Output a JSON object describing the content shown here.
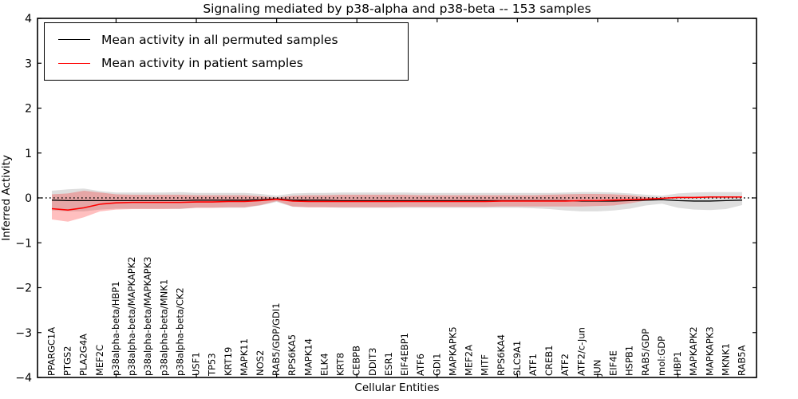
{
  "chart_data": {
    "type": "line",
    "title": "Signaling mediated by p38-alpha and p38-beta -- 153 samples",
    "xlabel": "Cellular Entities",
    "ylabel": "Inferred Activity",
    "ylim": [
      -4,
      4
    ],
    "yticks": [
      -4,
      -3,
      -2,
      -1,
      0,
      1,
      2,
      3,
      4
    ],
    "ytick_labels": [
      "−4",
      "−3",
      "−2",
      "−1",
      "0",
      "1",
      "2",
      "3",
      "4"
    ],
    "x_major_tick_indices": [
      4,
      9,
      14,
      19,
      24,
      29,
      34,
      39
    ],
    "zero_reference_line": true,
    "grid": false,
    "legend_position": "upper left",
    "categories": [
      "PPARGC1A",
      "PTGS2",
      "PLA2G4A",
      "MEF2C",
      "p38alpha-beta/HBP1",
      "p38alpha-beta/MAPKAPK2",
      "p38alpha-beta/MAPKAPK3",
      "p38alpha-beta/MNK1",
      "p38alpha-beta/CK2",
      "USF1",
      "TP53",
      "KRT19",
      "MAPK11",
      "NOS2",
      "RAB5/GDP/GDI1",
      "RPS6KA5",
      "MAPK14",
      "ELK4",
      "KRT8",
      "CEBPB",
      "DDIT3",
      "ESR1",
      "EIF4EBP1",
      "ATF6",
      "GDI1",
      "MAPKAPK5",
      "MEF2A",
      "MITF",
      "RPS6KA4",
      "SLC9A1",
      "ATF1",
      "CREB1",
      "ATF2",
      "ATF2/c-Jun",
      "JUN",
      "EIF4E",
      "HSPB1",
      "RAB5/GDP",
      "mol:GDP",
      "HBP1",
      "MAPKAPK2",
      "MAPKAPK3",
      "MKNK1",
      "RAB5A"
    ],
    "series": [
      {
        "name": "Mean activity in all permuted samples",
        "color": "#000000",
        "band_color": "rgba(0,0,0,0.13)",
        "values": [
          -0.05,
          -0.06,
          -0.06,
          -0.06,
          -0.06,
          -0.06,
          -0.06,
          -0.06,
          -0.06,
          -0.05,
          -0.05,
          -0.05,
          -0.05,
          -0.04,
          -0.02,
          -0.05,
          -0.05,
          -0.05,
          -0.06,
          -0.06,
          -0.06,
          -0.06,
          -0.06,
          -0.06,
          -0.06,
          -0.06,
          -0.06,
          -0.06,
          -0.06,
          -0.06,
          -0.06,
          -0.06,
          -0.06,
          -0.07,
          -0.07,
          -0.07,
          -0.06,
          -0.05,
          -0.04,
          -0.06,
          -0.07,
          -0.07,
          -0.06,
          -0.05
        ],
        "band_upper": [
          0.16,
          0.19,
          0.21,
          0.15,
          0.12,
          0.12,
          0.12,
          0.12,
          0.13,
          0.11,
          0.11,
          0.11,
          0.11,
          0.09,
          0.05,
          0.1,
          0.11,
          0.11,
          0.12,
          0.12,
          0.12,
          0.12,
          0.12,
          0.11,
          0.11,
          0.11,
          0.11,
          0.11,
          0.11,
          0.11,
          0.11,
          0.11,
          0.12,
          0.13,
          0.13,
          0.12,
          0.1,
          0.07,
          0.05,
          0.1,
          0.12,
          0.13,
          0.13,
          0.13
        ],
        "band_lower": [
          -0.28,
          -0.3,
          -0.3,
          -0.26,
          -0.24,
          -0.24,
          -0.24,
          -0.24,
          -0.25,
          -0.22,
          -0.22,
          -0.22,
          -0.22,
          -0.17,
          -0.09,
          -0.2,
          -0.21,
          -0.21,
          -0.22,
          -0.22,
          -0.22,
          -0.22,
          -0.22,
          -0.22,
          -0.22,
          -0.22,
          -0.22,
          -0.22,
          -0.22,
          -0.22,
          -0.23,
          -0.25,
          -0.28,
          -0.3,
          -0.3,
          -0.28,
          -0.24,
          -0.17,
          -0.13,
          -0.22,
          -0.26,
          -0.27,
          -0.25,
          -0.16
        ]
      },
      {
        "name": "Mean activity in patient samples",
        "color": "#ff0000",
        "band_color": "rgba(255,0,0,0.25)",
        "values": [
          -0.24,
          -0.27,
          -0.22,
          -0.14,
          -0.11,
          -0.1,
          -0.1,
          -0.1,
          -0.1,
          -0.09,
          -0.09,
          -0.08,
          -0.08,
          -0.06,
          -0.03,
          -0.07,
          -0.08,
          -0.08,
          -0.08,
          -0.08,
          -0.08,
          -0.08,
          -0.08,
          -0.08,
          -0.08,
          -0.08,
          -0.08,
          -0.08,
          -0.07,
          -0.07,
          -0.07,
          -0.07,
          -0.07,
          -0.06,
          -0.06,
          -0.05,
          -0.04,
          -0.03,
          -0.01,
          0.01,
          0.01,
          0.02,
          0.02,
          0.02
        ],
        "band_upper": [
          0.08,
          0.1,
          0.16,
          0.12,
          0.08,
          0.07,
          0.07,
          0.07,
          0.07,
          0.06,
          0.06,
          0.06,
          0.06,
          0.04,
          0.01,
          0.05,
          0.06,
          0.06,
          0.07,
          0.07,
          0.07,
          0.07,
          0.07,
          0.06,
          0.06,
          0.06,
          0.06,
          0.06,
          0.06,
          0.06,
          0.06,
          0.07,
          0.08,
          0.09,
          0.09,
          0.08,
          0.06,
          0.02,
          0.0,
          0.02,
          0.02,
          0.03,
          0.03,
          0.03
        ],
        "band_lower": [
          -0.48,
          -0.53,
          -0.43,
          -0.3,
          -0.26,
          -0.25,
          -0.25,
          -0.25,
          -0.24,
          -0.22,
          -0.22,
          -0.21,
          -0.21,
          -0.16,
          -0.07,
          -0.19,
          -0.21,
          -0.21,
          -0.21,
          -0.21,
          -0.21,
          -0.21,
          -0.2,
          -0.2,
          -0.2,
          -0.2,
          -0.2,
          -0.2,
          -0.19,
          -0.19,
          -0.19,
          -0.19,
          -0.19,
          -0.19,
          -0.18,
          -0.17,
          -0.12,
          -0.06,
          -0.02,
          0.0,
          0.0,
          0.01,
          0.01,
          0.01
        ]
      }
    ]
  }
}
